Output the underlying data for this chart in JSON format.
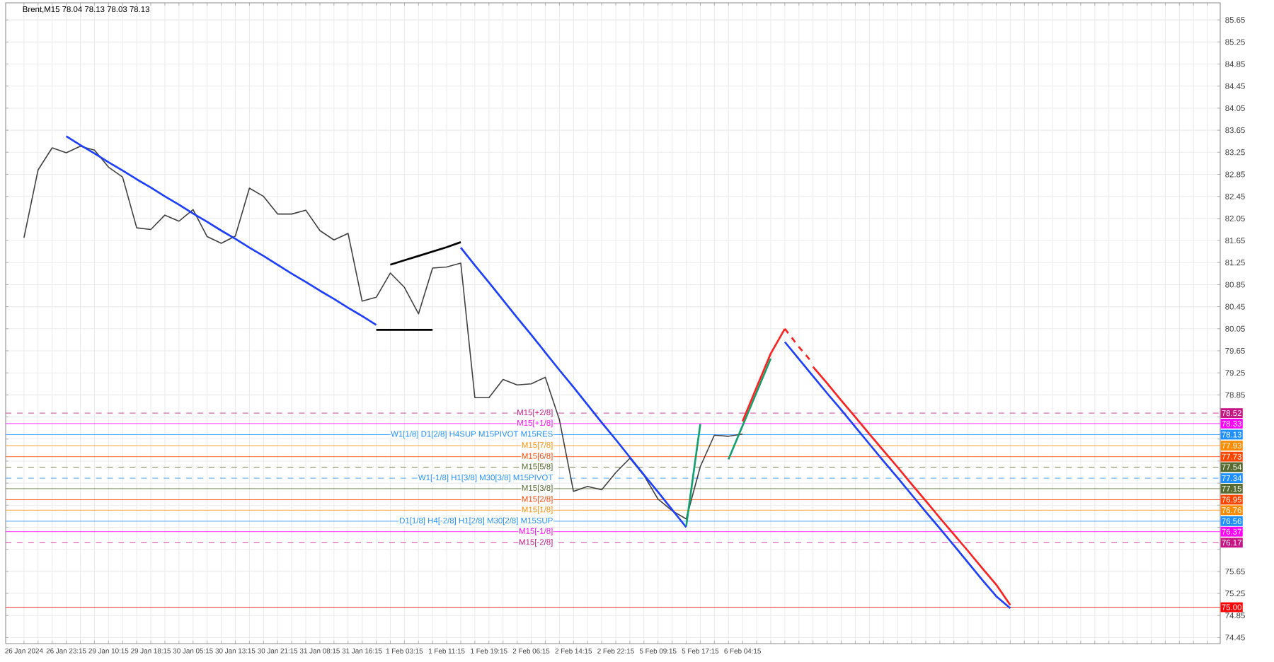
{
  "chart_data": {
    "type": "line",
    "title": "Brent,M15 78.04 78.13 78.03 78.13",
    "categories": [
      "26 Jan 2024",
      null,
      null,
      "26 Jan 23:15",
      null,
      null,
      "29 Jan 10:15",
      null,
      null,
      "29 Jan 18:15",
      null,
      null,
      "30 Jan 05:15",
      null,
      null,
      "30 Jan 13:15",
      null,
      null,
      "30 Jan 21:15",
      null,
      null,
      "31 Jan 08:15",
      null,
      null,
      "31 Jan 16:15",
      null,
      null,
      "1 Feb 03:15",
      null,
      null,
      "1 Feb 11:15",
      null,
      null,
      "1 Feb 19:15",
      null,
      null,
      "2 Feb 06:15",
      null,
      null,
      "2 Feb 14:15",
      null,
      null,
      "2 Feb 22:15",
      null,
      null,
      "5 Feb 09:15",
      null,
      null,
      "5 Feb 17:15",
      null,
      null,
      "6 Feb 04:15",
      null,
      null,
      null,
      null,
      null,
      null,
      null,
      null,
      null,
      null,
      null,
      null,
      null,
      null,
      null,
      null,
      null,
      null,
      null,
      null,
      null,
      null,
      null,
      null,
      null,
      null,
      null,
      null,
      null,
      null,
      null,
      null,
      null
    ],
    "ylim": [
      74.34,
      85.96
    ],
    "grid": true,
    "yticks": [
      74.45,
      74.85,
      75.25,
      75.65,
      {
        "value": 76.05,
        "label": null
      },
      {
        "value": 76.45,
        "label": null
      },
      {
        "value": 76.85,
        "label": null
      },
      {
        "value": 77.25,
        "label": null
      },
      {
        "value": 77.65,
        "label": null
      },
      {
        "value": 78.05,
        "label": null
      },
      {
        "value": 78.45,
        "label": null
      },
      78.85,
      79.25,
      79.65,
      80.05,
      80.45,
      80.85,
      81.25,
      81.65,
      82.05,
      82.45,
      82.85,
      83.25,
      83.65,
      84.05,
      84.45,
      84.85,
      85.25,
      85.65
    ],
    "ref_lines": [
      {
        "axis": "y",
        "value": 78.52,
        "label": "78.52",
        "color": "#c71585",
        "line_style": "dashed"
      },
      {
        "axis": "y",
        "value": 78.33,
        "label": "78.33",
        "color": "#ff00ff",
        "line_style": "solid"
      },
      {
        "axis": "y",
        "value": 78.13,
        "label": "78.13",
        "color": "#1e90ff",
        "line_style": "solid"
      },
      {
        "axis": "y",
        "value": 77.93,
        "label": "77.93",
        "color": "#ff8c00",
        "line_style": "solid"
      },
      {
        "axis": "y",
        "value": 77.73,
        "label": "77.73",
        "color": "#ff4500",
        "line_style": "solid"
      },
      {
        "axis": "y",
        "value": 77.54,
        "label": "77.54",
        "color": "#556b2f",
        "line_style": "dashed"
      },
      {
        "axis": "y",
        "value": 77.34,
        "label": "77.34",
        "color": "#1e90ff",
        "line_style": "dashed"
      },
      {
        "axis": "y",
        "value": 77.15,
        "label": "77.15",
        "color": "#556b2f",
        "line_style": "solid"
      },
      {
        "axis": "y",
        "value": 76.95,
        "label": "76.95",
        "color": "#ff4500",
        "line_style": "solid"
      },
      {
        "axis": "y",
        "value": 76.76,
        "label": "76.76",
        "color": "#ff8c00",
        "line_style": "solid"
      },
      {
        "axis": "y",
        "value": 76.56,
        "label": "76.56",
        "color": "#1e90ff",
        "line_style": "solid"
      },
      {
        "axis": "y",
        "value": 76.37,
        "label": "76.37",
        "color": "#ff00ff",
        "line_style": "solid"
      },
      {
        "axis": "y",
        "value": 76.17,
        "label": "76.17",
        "color": "#c71585",
        "line_style": "dashed"
      },
      {
        "axis": "y",
        "value": 75.0,
        "label": "75.00",
        "color": "#ff0000",
        "line_style": "solid"
      }
    ],
    "annotations": [
      {
        "text": "M15[+2/8]",
        "y": 78.52
      },
      {
        "text": "M15[+1/8]",
        "y": 78.33
      },
      {
        "text": "W1[1/8] D1[2/8] H4SUP M15PIVOT M15RES",
        "y": 78.13
      },
      {
        "text": "M15[7/8]",
        "y": 77.93
      },
      {
        "text": "M15[6/8]",
        "y": 77.73
      },
      {
        "text": "M15[5/8]",
        "y": 77.54
      },
      {
        "text": "W1[-1/8] H1[3/8] M30[3/8] M15PIVOT",
        "y": 77.34
      },
      {
        "text": "M15[3/8]",
        "y": 77.15
      },
      {
        "text": "M15[2/8]",
        "y": 76.95
      },
      {
        "text": "M15[1/8]",
        "y": 76.76
      },
      {
        "text": "D1[1/8] H4[-2/8] H1[2/8] M30[2/8] M15SUP",
        "y": 76.56
      },
      {
        "text": "M15[-1/8]",
        "y": 76.37
      },
      {
        "text": "M15[-2/8]",
        "y": 76.17
      }
    ],
    "series": [
      {
        "color": "#404040",
        "values": [
          81.7,
          82.93,
          83.33,
          83.24,
          83.36,
          83.29,
          82.98,
          82.8,
          81.88,
          81.85,
          82.11,
          82.0,
          82.21,
          81.72,
          81.6,
          81.73,
          82.6,
          82.45,
          82.13,
          82.13,
          82.2,
          81.83,
          81.66,
          81.78,
          80.55,
          80.62,
          81.06,
          80.8,
          80.32,
          81.15,
          81.17,
          81.24,
          78.8,
          78.8,
          79.13,
          79.03,
          79.05,
          79.17,
          78.4,
          77.1,
          77.19,
          77.13,
          77.44,
          77.7,
          77.39,
          76.96,
          76.75,
          76.6,
          77.55,
          78.12,
          78.1,
          78.14,
          null,
          null,
          null,
          null,
          null,
          null,
          null,
          null,
          null,
          null,
          null,
          null,
          null,
          null,
          null,
          null,
          null,
          null,
          null,
          null,
          null,
          null,
          null,
          null,
          null,
          null,
          null,
          null,
          null,
          null,
          null,
          null,
          null
        ]
      },
      {
        "color": "#1f3fff",
        "values": [
          null,
          null,
          null,
          83.54,
          83.38,
          83.23,
          83.07,
          82.92,
          82.76,
          82.61,
          82.45,
          82.3,
          82.14,
          81.99,
          81.83,
          81.68,
          81.52,
          81.37,
          81.21,
          81.05,
          80.9,
          80.74,
          80.59,
          80.43,
          80.28,
          80.12,
          null,
          null,
          null,
          null,
          null,
          null,
          null,
          null,
          null,
          null,
          null,
          null,
          null,
          null,
          null,
          null,
          null,
          null,
          null,
          null,
          null,
          null,
          null,
          null,
          null,
          null,
          null,
          null,
          null,
          null,
          null,
          null,
          null,
          null,
          null,
          null,
          null,
          null,
          null,
          null,
          null,
          null,
          null,
          null,
          null,
          null,
          null,
          null,
          null,
          null,
          null,
          null,
          null,
          null,
          null,
          null,
          null,
          null,
          null
        ]
      },
      {
        "color": "#000000",
        "values": [
          null,
          null,
          null,
          null,
          null,
          null,
          null,
          null,
          null,
          null,
          null,
          null,
          null,
          null,
          null,
          null,
          null,
          null,
          null,
          null,
          null,
          null,
          null,
          null,
          null,
          null,
          81.21,
          81.29,
          81.37,
          81.45,
          81.53,
          81.62,
          null,
          null,
          null,
          null,
          null,
          null,
          null,
          null,
          null,
          null,
          null,
          null,
          null,
          null,
          null,
          null,
          null,
          null,
          null,
          null,
          null,
          null,
          null,
          null,
          null,
          null,
          null,
          null,
          null,
          null,
          null,
          null,
          null,
          null,
          null,
          null,
          null,
          null,
          null,
          null,
          null,
          null,
          null,
          null,
          null,
          null,
          null,
          null,
          null,
          null,
          null,
          null,
          null
        ]
      },
      {
        "color": "#000000",
        "values": [
          null,
          null,
          null,
          null,
          null,
          null,
          null,
          null,
          null,
          null,
          null,
          null,
          null,
          null,
          null,
          null,
          null,
          null,
          null,
          null,
          null,
          null,
          null,
          null,
          null,
          80.03,
          80.03,
          80.03,
          80.03,
          80.03,
          null,
          null,
          null,
          null,
          null,
          null,
          null,
          null,
          null,
          null,
          null,
          null,
          null,
          null,
          null,
          null,
          null,
          null,
          null,
          null,
          null,
          null,
          null,
          null,
          null,
          null,
          null,
          null,
          null,
          null,
          null,
          null,
          null,
          null,
          null,
          null,
          null,
          null,
          null,
          null,
          null,
          null,
          null,
          null,
          null,
          null,
          null,
          null,
          null,
          null,
          null,
          null,
          null,
          null,
          null
        ]
      },
      {
        "color": "#1f3fff",
        "values": [
          null,
          null,
          null,
          null,
          null,
          null,
          null,
          null,
          null,
          null,
          null,
          null,
          null,
          null,
          null,
          null,
          null,
          null,
          null,
          null,
          null,
          null,
          null,
          null,
          null,
          null,
          null,
          null,
          null,
          null,
          null,
          81.52,
          81.2,
          80.89,
          80.57,
          80.25,
          79.94,
          79.62,
          79.3,
          78.99,
          78.67,
          78.35,
          78.04,
          77.72,
          77.4,
          77.09,
          76.77,
          76.45,
          null,
          null,
          null,
          null,
          null,
          null,
          null,
          null,
          null,
          null,
          null,
          null,
          null,
          null,
          null,
          null,
          null,
          null,
          null,
          null,
          null,
          null,
          null,
          null,
          null,
          null,
          null,
          null,
          null,
          null,
          null,
          null,
          null,
          null,
          null,
          null,
          null
        ]
      },
      {
        "color": "#12a06e",
        "values": [
          null,
          null,
          null,
          null,
          null,
          null,
          null,
          null,
          null,
          null,
          null,
          null,
          null,
          null,
          null,
          null,
          null,
          null,
          null,
          null,
          null,
          null,
          null,
          null,
          null,
          null,
          null,
          null,
          null,
          null,
          null,
          null,
          null,
          null,
          null,
          null,
          null,
          null,
          null,
          null,
          null,
          null,
          null,
          null,
          null,
          null,
          null,
          76.47,
          78.32,
          null,
          null,
          null,
          null,
          null,
          null,
          null,
          null,
          null,
          null,
          null,
          null,
          null,
          null,
          null,
          null,
          null,
          null,
          null,
          null,
          null,
          null,
          null,
          null,
          null,
          null,
          null,
          null,
          null,
          null,
          null,
          null,
          null,
          null,
          null,
          null
        ]
      },
      {
        "color": "#12a06e",
        "values": [
          null,
          null,
          null,
          null,
          null,
          null,
          null,
          null,
          null,
          null,
          null,
          null,
          null,
          null,
          null,
          null,
          null,
          null,
          null,
          null,
          null,
          null,
          null,
          null,
          null,
          null,
          null,
          null,
          null,
          null,
          null,
          null,
          null,
          null,
          null,
          null,
          null,
          null,
          null,
          null,
          null,
          null,
          null,
          null,
          null,
          null,
          null,
          null,
          null,
          null,
          77.68,
          78.29,
          78.9,
          79.51,
          null,
          null,
          null,
          null,
          null,
          null,
          null,
          null,
          null,
          null,
          null,
          null,
          null,
          null,
          null,
          null,
          null,
          null,
          null,
          null,
          null,
          null,
          null,
          null,
          null,
          null,
          null,
          null,
          null,
          null,
          null
        ]
      },
      {
        "color": "#ff2020",
        "values": [
          null,
          null,
          null,
          null,
          null,
          null,
          null,
          null,
          null,
          null,
          null,
          null,
          null,
          null,
          null,
          null,
          null,
          null,
          null,
          null,
          null,
          null,
          null,
          null,
          null,
          null,
          null,
          null,
          null,
          null,
          null,
          null,
          null,
          null,
          null,
          null,
          null,
          null,
          null,
          null,
          null,
          null,
          null,
          null,
          null,
          null,
          null,
          null,
          null,
          null,
          null,
          78.37,
          78.99,
          79.6,
          80.05,
          null,
          null,
          null,
          null,
          null,
          null,
          null,
          null,
          null,
          null,
          null,
          null,
          null,
          null,
          null,
          null,
          null,
          null,
          null,
          null,
          null,
          null,
          null,
          null,
          null,
          null,
          null,
          null,
          null,
          null
        ]
      },
      {
        "color": "#ff2020",
        "line_style": "dashed",
        "values": [
          null,
          null,
          null,
          null,
          null,
          null,
          null,
          null,
          null,
          null,
          null,
          null,
          null,
          null,
          null,
          null,
          null,
          null,
          null,
          null,
          null,
          null,
          null,
          null,
          null,
          null,
          null,
          null,
          null,
          null,
          null,
          null,
          null,
          null,
          null,
          null,
          null,
          null,
          null,
          null,
          null,
          null,
          null,
          null,
          null,
          null,
          null,
          null,
          null,
          null,
          null,
          null,
          null,
          null,
          80.05,
          79.72,
          79.42,
          null,
          null,
          null,
          null,
          null,
          null,
          null,
          null,
          null,
          null,
          null,
          null,
          null,
          null,
          null,
          null,
          null,
          null,
          null,
          null,
          null,
          null,
          null,
          null,
          null,
          null,
          null,
          null
        ]
      },
      {
        "color": "#ff2020",
        "values": [
          null,
          null,
          null,
          null,
          null,
          null,
          null,
          null,
          null,
          null,
          null,
          null,
          null,
          null,
          null,
          null,
          null,
          null,
          null,
          null,
          null,
          null,
          null,
          null,
          null,
          null,
          null,
          null,
          null,
          null,
          null,
          null,
          null,
          null,
          null,
          null,
          null,
          null,
          null,
          null,
          null,
          null,
          null,
          null,
          null,
          null,
          null,
          null,
          null,
          null,
          null,
          null,
          null,
          null,
          null,
          null,
          79.36,
          79.06,
          78.75,
          78.45,
          78.14,
          77.84,
          77.54,
          77.23,
          76.93,
          76.62,
          76.32,
          76.02,
          75.71,
          75.41,
          75.04,
          null,
          null,
          null,
          null,
          null,
          null,
          null,
          null,
          null,
          null,
          null,
          null,
          null,
          null
        ]
      },
      {
        "color": "#1f3fff",
        "values": [
          null,
          null,
          null,
          null,
          null,
          null,
          null,
          null,
          null,
          null,
          null,
          null,
          null,
          null,
          null,
          null,
          null,
          null,
          null,
          null,
          null,
          null,
          null,
          null,
          null,
          null,
          null,
          null,
          null,
          null,
          null,
          null,
          null,
          null,
          null,
          null,
          null,
          null,
          null,
          null,
          null,
          null,
          null,
          null,
          null,
          null,
          null,
          null,
          null,
          null,
          null,
          null,
          null,
          null,
          79.81,
          79.5,
          79.19,
          78.88,
          78.58,
          78.27,
          77.96,
          77.65,
          77.35,
          77.04,
          76.73,
          76.43,
          76.12,
          75.81,
          75.5,
          75.2,
          74.98,
          null,
          null,
          null,
          null,
          null,
          null,
          null,
          null,
          null,
          null,
          null,
          null,
          null,
          null
        ]
      }
    ]
  }
}
